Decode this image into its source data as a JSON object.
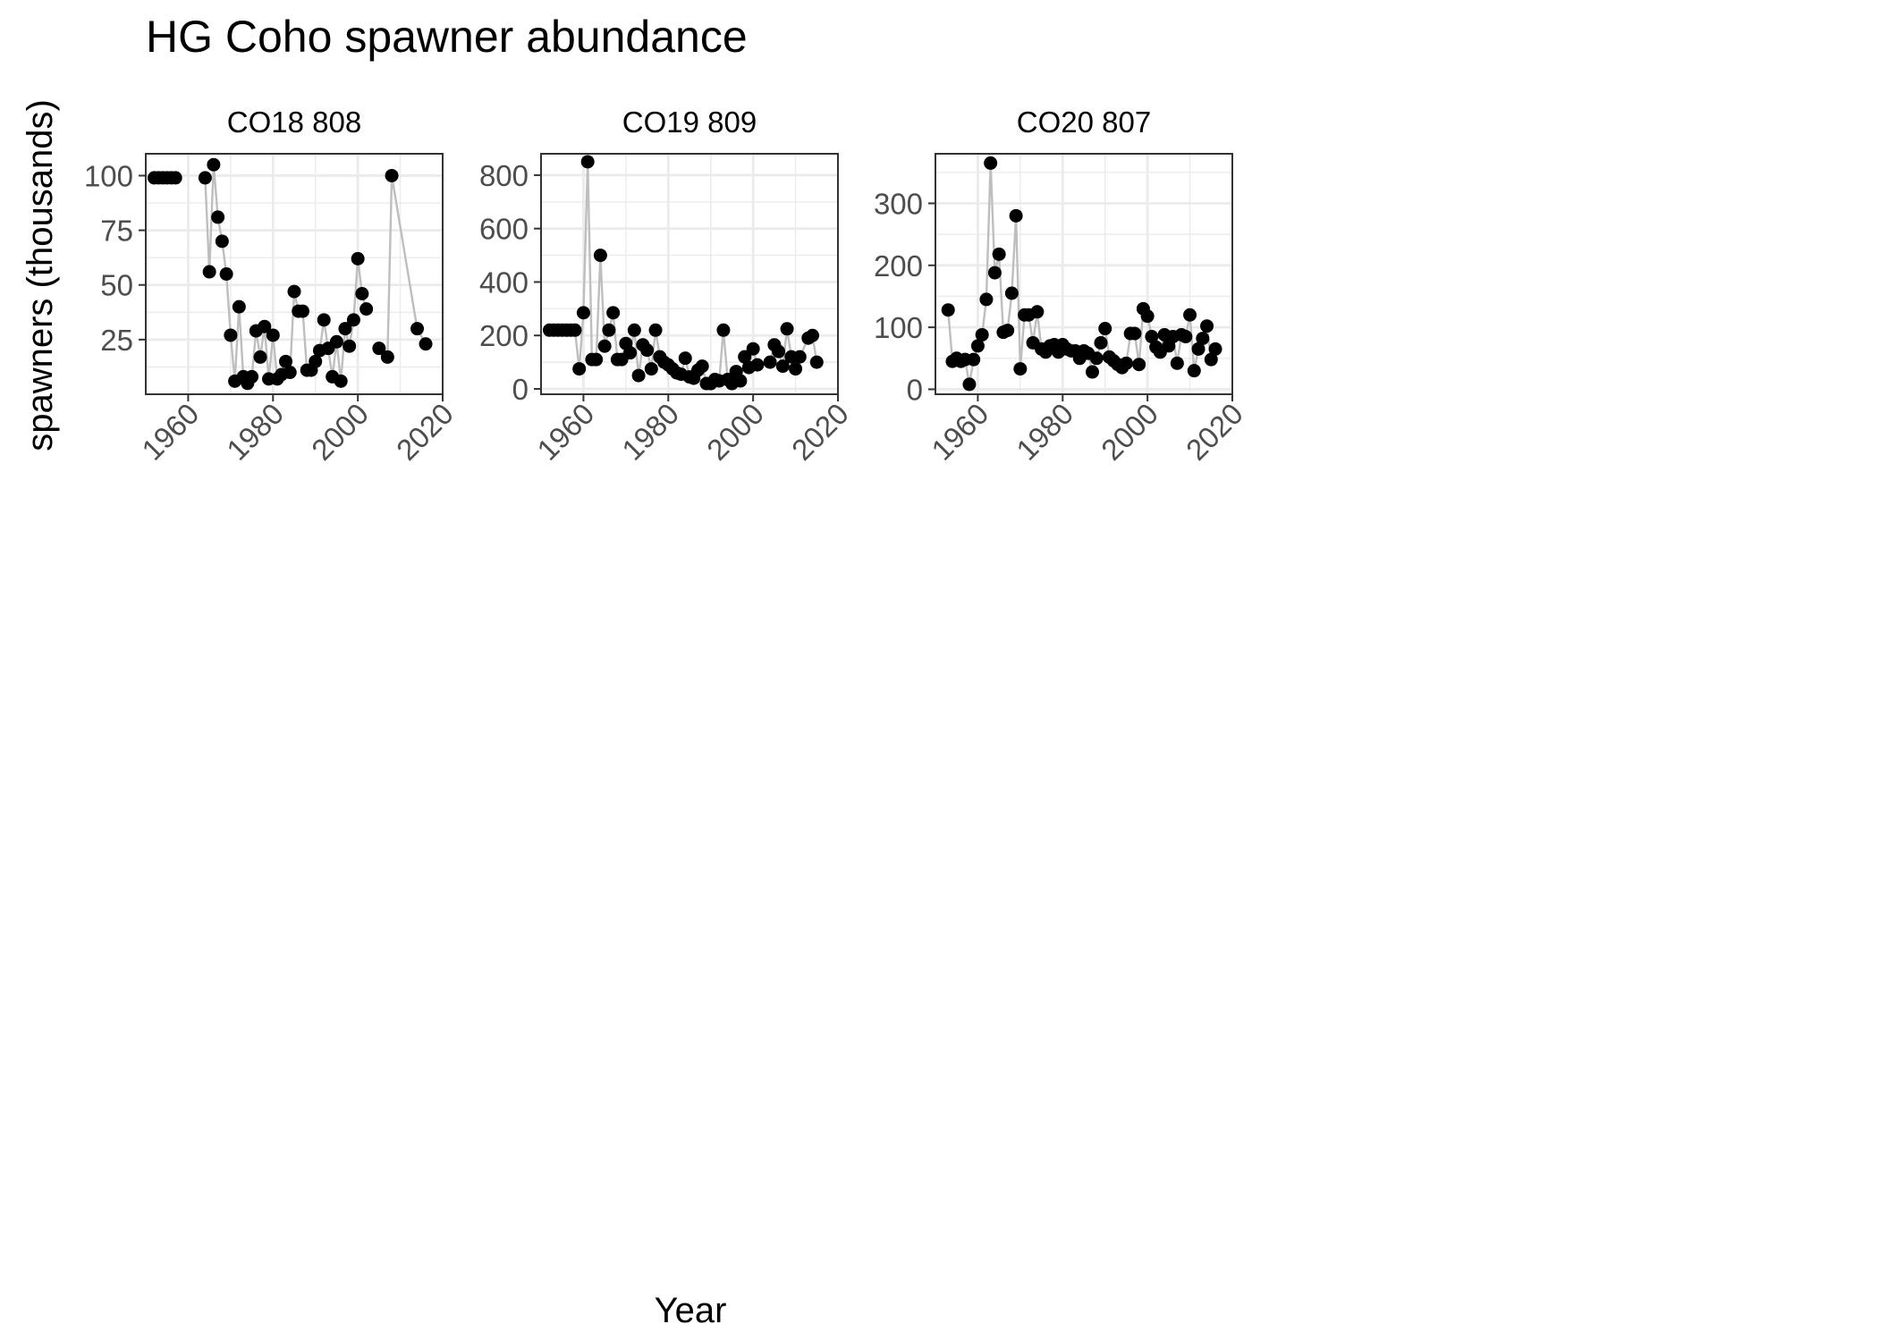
{
  "figure": {
    "title": "HG Coho spawner abundance",
    "xlabel": "Year",
    "ylabel": "spawners (thousands)"
  },
  "colors": {
    "point": "#000000",
    "line": "#bebebe",
    "grid": "#ebebeb",
    "panel_border": "#333333",
    "tick_text": "#4d4d4d",
    "text": "#000000"
  },
  "chart_data": [
    {
      "type": "line",
      "title": "CO18 808",
      "xlabel": "Year",
      "ylabel": "spawners (thousands)",
      "xlim": [
        1950,
        2020
      ],
      "ylim": [
        0,
        110
      ],
      "xticks": [
        1960,
        1980,
        2000,
        2020
      ],
      "yticks": [
        25,
        50,
        75,
        100
      ],
      "grid": true,
      "markers": true,
      "x": [
        1952,
        1953,
        1954,
        1955,
        1956,
        1957,
        1964,
        1965,
        1966,
        1967,
        1968,
        1969,
        1970,
        1971,
        1972,
        1973,
        1974,
        1975,
        1976,
        1977,
        1978,
        1979,
        1980,
        1981,
        1982,
        1983,
        1984,
        1985,
        1986,
        1987,
        1988,
        1989,
        1990,
        1991,
        1992,
        1993,
        1994,
        1995,
        1996,
        1997,
        1998,
        1999,
        2000,
        2001,
        2002,
        2003,
        2005,
        2007,
        2008,
        2014,
        2016
      ],
      "y": [
        99,
        99,
        99,
        99,
        99,
        99,
        99,
        56,
        105,
        81,
        70,
        55,
        27,
        6,
        40,
        8,
        5,
        8,
        29,
        17,
        31,
        7,
        27,
        7,
        9,
        15,
        10,
        47,
        38,
        38,
        11,
        11,
        15,
        20,
        34,
        21,
        8,
        24,
        6,
        30,
        22,
        34,
        62,
        46,
        39,
        null,
        21,
        17,
        100,
        30,
        23
      ],
      "line_gaps": [
        5,
        44
      ]
    },
    {
      "type": "line",
      "title": "CO19 809",
      "xlabel": "Year",
      "ylabel": "spawners (thousands)",
      "xlim": [
        1950,
        2020
      ],
      "ylim": [
        -20,
        880
      ],
      "xticks": [
        1960,
        1980,
        2000,
        2020
      ],
      "yticks": [
        0,
        200,
        400,
        600,
        800
      ],
      "grid": true,
      "markers": true,
      "x": [
        1952,
        1953,
        1954,
        1955,
        1956,
        1957,
        1958,
        1959,
        1960,
        1961,
        1962,
        1963,
        1964,
        1965,
        1966,
        1967,
        1968,
        1969,
        1970,
        1971,
        1972,
        1973,
        1974,
        1975,
        1976,
        1977,
        1978,
        1979,
        1980,
        1981,
        1982,
        1983,
        1984,
        1985,
        1986,
        1987,
        1988,
        1989,
        1990,
        1991,
        1992,
        1993,
        1994,
        1995,
        1996,
        1997,
        1998,
        1999,
        2000,
        2001,
        2004,
        2005,
        2006,
        2007,
        2008,
        2009,
        2010,
        2011,
        2013,
        2014,
        2015
      ],
      "y": [
        220,
        220,
        220,
        220,
        220,
        220,
        220,
        75,
        285,
        850,
        110,
        110,
        500,
        160,
        220,
        285,
        110,
        110,
        170,
        135,
        220,
        50,
        165,
        145,
        75,
        220,
        120,
        100,
        90,
        75,
        60,
        55,
        115,
        45,
        40,
        70,
        85,
        20,
        20,
        35,
        30,
        220,
        35,
        20,
        65,
        30,
        120,
        80,
        150,
        90,
        100,
        165,
        140,
        85,
        225,
        120,
        75,
        120,
        190,
        200,
        100
      ]
    },
    {
      "type": "line",
      "title": "CO20 807",
      "xlabel": "Year",
      "ylabel": "spawners (thousands)",
      "xlim": [
        1950,
        2020
      ],
      "ylim": [
        -8,
        380
      ],
      "xticks": [
        1960,
        1980,
        2000,
        2020
      ],
      "yticks": [
        0,
        100,
        200,
        300
      ],
      "grid": true,
      "markers": true,
      "x": [
        1953,
        1954,
        1955,
        1956,
        1957,
        1958,
        1959,
        1960,
        1961,
        1962,
        1963,
        1964,
        1965,
        1966,
        1967,
        1968,
        1969,
        1970,
        1971,
        1972,
        1973,
        1974,
        1975,
        1976,
        1977,
        1978,
        1979,
        1980,
        1981,
        1982,
        1983,
        1984,
        1985,
        1986,
        1987,
        1988,
        1989,
        1990,
        1991,
        1992,
        1993,
        1994,
        1995,
        1996,
        1997,
        1998,
        1999,
        2000,
        2001,
        2002,
        2003,
        2004,
        2005,
        2006,
        2007,
        2008,
        2009,
        2010,
        2011,
        2012,
        2013,
        2014,
        2015,
        2016
      ],
      "y": [
        128,
        45,
        50,
        45,
        48,
        8,
        48,
        70,
        88,
        145,
        365,
        188,
        218,
        92,
        95,
        155,
        280,
        33,
        120,
        120,
        75,
        125,
        65,
        60,
        70,
        72,
        60,
        72,
        65,
        62,
        62,
        50,
        62,
        58,
        28,
        50,
        75,
        98,
        52,
        46,
        40,
        35,
        42,
        90,
        90,
        40,
        130,
        118,
        85,
        68,
        60,
        88,
        70,
        85,
        42,
        88,
        85,
        120,
        30,
        65,
        82,
        102,
        48,
        65
      ]
    }
  ]
}
